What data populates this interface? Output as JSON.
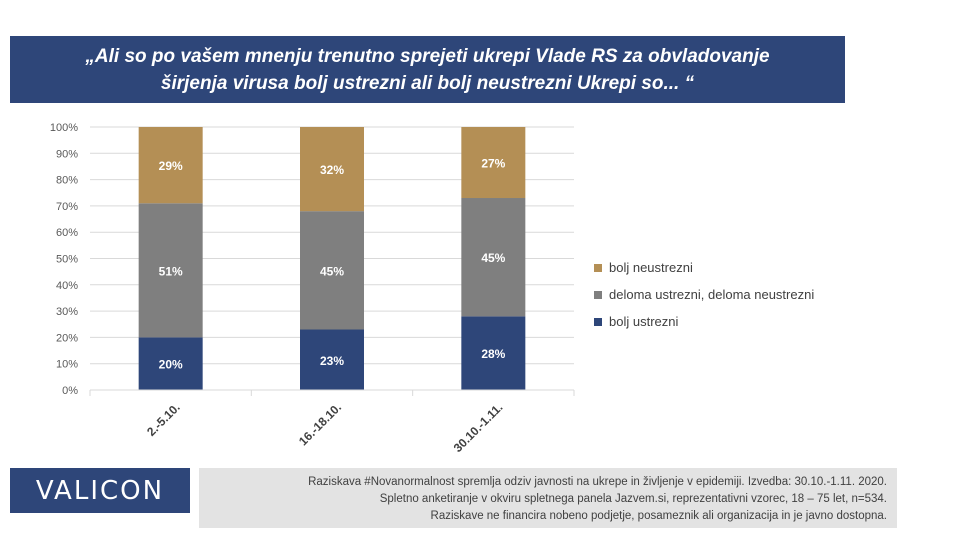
{
  "title": {
    "line1": "„Ali so po vašem mnenju trenutno sprejeti ukrepi Vlade RS za obvladovanje",
    "line2": "širjenja virusa bolj ustrezni ali bolj neustrezni  Ukrepi so... “"
  },
  "chart_data": {
    "type": "bar",
    "stacked": true,
    "categories": [
      "2.-5.10.",
      "16.-18.10.",
      "30.10.-1.11."
    ],
    "series": [
      {
        "name": "bolj ustrezni",
        "color": "#2e4679",
        "values": [
          20,
          23,
          28
        ],
        "labels": [
          "20%",
          "23%",
          "28%"
        ]
      },
      {
        "name": "deloma ustrezni, deloma neustrezni",
        "color": "#7f7f7f",
        "values": [
          51,
          45,
          45
        ],
        "labels": [
          "51%",
          "45%",
          "45%"
        ]
      },
      {
        "name": "bolj neustrezni",
        "color": "#b48f55",
        "values": [
          29,
          32,
          27
        ],
        "labels": [
          "29%",
          "32%",
          "27%"
        ]
      }
    ],
    "ylim": [
      0,
      100
    ],
    "yticks": [
      "0%",
      "10%",
      "20%",
      "30%",
      "40%",
      "50%",
      "60%",
      "70%",
      "80%",
      "90%",
      "100%"
    ],
    "grid": true,
    "legend_position": "right"
  },
  "legend": [
    {
      "label": "bolj neustrezni",
      "color": "#b48f55"
    },
    {
      "label": "deloma ustrezni, deloma neustrezni",
      "color": "#7f7f7f"
    },
    {
      "label": "bolj ustrezni",
      "color": "#2e4679"
    }
  ],
  "logo": {
    "text": "VALICON"
  },
  "footer": {
    "line1": "Raziskava #Novanormalnost spremlja odziv javnosti na ukrepe in življenje v epidemiji.  Izvedba: 30.10.-1.11. 2020.",
    "line2": "Spletno anketiranje v okviru spletnega panela Jazvem.si, reprezentativni vzorec, 18 – 75 let, n=534.",
    "line3": "Raziskave ne financira nobeno podjetje, posameznik ali organizacija in je javno dostopna."
  }
}
